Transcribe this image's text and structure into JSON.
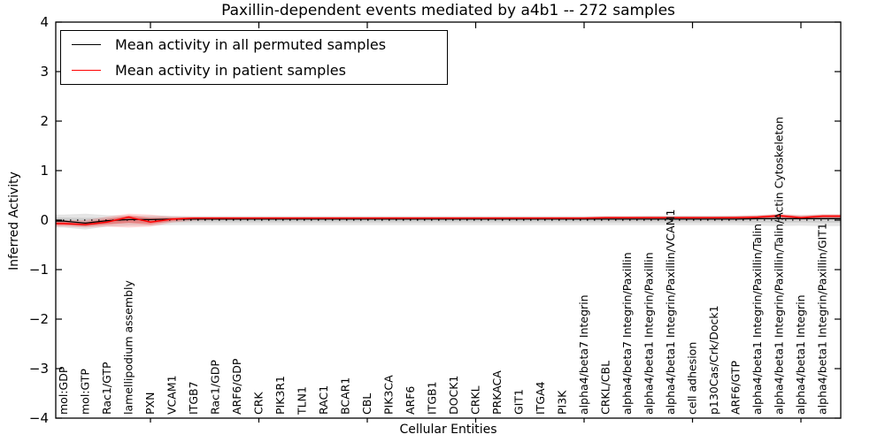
{
  "figure": {
    "background": "#ffffff",
    "axis_color": "#000000"
  },
  "chart_data": {
    "type": "line",
    "title": "Paxillin-dependent events mediated by a4b1 -- 272 samples",
    "xlabel": "Cellular Entities",
    "ylabel": "Inferred Activity",
    "ylim": [
      -4,
      4
    ],
    "yticks": [
      -4,
      -3,
      -2,
      -1,
      0,
      1,
      2,
      3,
      4
    ],
    "grid": false,
    "zero_line": {
      "style": "dotted",
      "color": "#000000",
      "value": 0
    },
    "legend_position": "upper left",
    "categories": [
      "mol:GDP",
      "mol:GTP",
      "Rac1/GTP",
      "lamellipodium assembly",
      "PXN",
      "VCAM1",
      "ITGB7",
      "Rac1/GDP",
      "ARF6/GDP",
      "CRK",
      "PIK3R1",
      "TLN1",
      "RAC1",
      "BCAR1",
      "CBL",
      "PIK3CA",
      "ARF6",
      "ITGB1",
      "DOCK1",
      "CRKL",
      "PRKACA",
      "GIT1",
      "ITGA4",
      "PI3K",
      "alpha4/beta7 Integrin",
      "CRKL/CBL",
      "alpha4/beta7 Integrin/Paxillin",
      "alpha4/beta1 Integrin/Paxillin",
      "alpha4/beta1 Integrin/Paxillin/VCAM1",
      "cell adhesion",
      "p130Cas/Crk/Dock1",
      "ARF6/GTP",
      "alpha4/beta1 Integrin/Paxillin/Talin",
      "alpha4/beta1 Integrin/Paxillin/Talin/Actin Cytoskeleton",
      "alpha4/beta1 Integrin",
      "alpha4/beta1 Integrin/Paxillin/GIT1"
    ],
    "series": [
      {
        "name": "Mean activity in all permuted samples",
        "color": "#000000",
        "values": [
          -0.02,
          -0.06,
          -0.01,
          0.01,
          0.01,
          0.02,
          0.02,
          0.02,
          0.02,
          0.02,
          0.02,
          0.02,
          0.02,
          0.02,
          0.02,
          0.02,
          0.02,
          0.02,
          0.02,
          0.02,
          0.02,
          0.02,
          0.02,
          0.02,
          0.02,
          0.02,
          0.02,
          0.02,
          0.02,
          0.02,
          0.02,
          0.02,
          0.03,
          0.03,
          0.03,
          0.03
        ]
      },
      {
        "name": "Mean activity in patient samples",
        "color": "#ff0000",
        "values": [
          -0.07,
          -0.09,
          -0.04,
          0.06,
          -0.04,
          0.02,
          0.04,
          0.04,
          0.04,
          0.04,
          0.04,
          0.04,
          0.04,
          0.04,
          0.04,
          0.04,
          0.04,
          0.04,
          0.04,
          0.04,
          0.04,
          0.04,
          0.04,
          0.04,
          0.04,
          0.05,
          0.05,
          0.05,
          0.05,
          0.05,
          0.05,
          0.05,
          0.06,
          0.09,
          0.05,
          0.08
        ]
      }
    ],
    "bands": [
      {
        "series": "Mean activity in all permuted samples",
        "color": "#999999",
        "upper": [
          0.11,
          0.13,
          0.1,
          0.09,
          0.09,
          0.09,
          0.08,
          0.08,
          0.08,
          0.08,
          0.08,
          0.08,
          0.08,
          0.08,
          0.08,
          0.08,
          0.08,
          0.08,
          0.08,
          0.08,
          0.08,
          0.08,
          0.08,
          0.08,
          0.08,
          0.08,
          0.08,
          0.09,
          0.09,
          0.09,
          0.09,
          0.09,
          0.1,
          0.11,
          0.1,
          0.11
        ],
        "lower": [
          -0.15,
          -0.19,
          -0.13,
          -0.11,
          -0.11,
          -0.1,
          -0.1,
          -0.1,
          -0.1,
          -0.1,
          -0.1,
          -0.1,
          -0.1,
          -0.1,
          -0.1,
          -0.1,
          -0.1,
          -0.1,
          -0.1,
          -0.1,
          -0.1,
          -0.1,
          -0.1,
          -0.1,
          -0.1,
          -0.1,
          -0.1,
          -0.1,
          -0.1,
          -0.1,
          -0.1,
          -0.1,
          -0.11,
          -0.12,
          -0.11,
          -0.12
        ]
      },
      {
        "series": "Mean activity in patient samples",
        "color": "#ff2222",
        "upper": [
          0.0,
          0.0,
          0.07,
          0.13,
          0.11,
          0.07,
          0.07,
          0.07,
          0.07,
          0.07,
          0.07,
          0.07,
          0.07,
          0.07,
          0.07,
          0.07,
          0.07,
          0.07,
          0.07,
          0.07,
          0.07,
          0.07,
          0.07,
          0.07,
          0.07,
          0.08,
          0.08,
          0.08,
          0.08,
          0.08,
          0.08,
          0.09,
          0.1,
          0.13,
          0.1,
          0.12
        ],
        "lower": [
          -0.13,
          -0.15,
          -0.13,
          -0.15,
          -0.13,
          -0.05,
          -0.01,
          0.0,
          0.0,
          0.01,
          0.01,
          0.01,
          0.01,
          0.01,
          0.01,
          0.01,
          0.01,
          0.01,
          0.01,
          0.01,
          0.01,
          0.01,
          0.01,
          0.01,
          0.01,
          0.02,
          0.02,
          0.02,
          0.02,
          0.02,
          0.02,
          0.02,
          0.02,
          0.03,
          0.01,
          0.03
        ]
      }
    ]
  }
}
